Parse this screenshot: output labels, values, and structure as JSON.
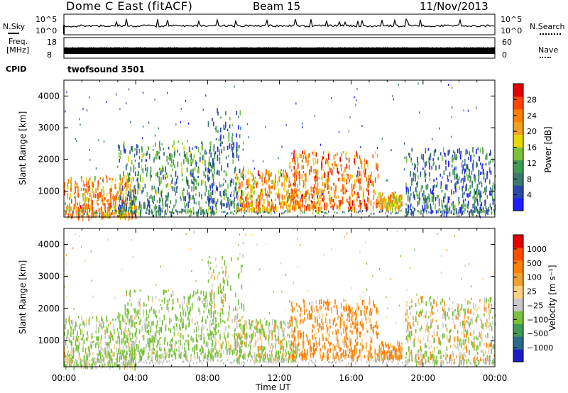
{
  "header": {
    "station": "Dome C East (fitACF)",
    "beam": "Beam 15",
    "date": "11/Nov/2013"
  },
  "top_panels": {
    "nsky_label": "N.Sky",
    "nsky_ticks": [
      "10^5",
      "10^0"
    ],
    "nsearch_label": "N.Search",
    "nsearch_ticks": [
      "10^5",
      "10^0"
    ],
    "freq_label_line1": "Freq.",
    "freq_label_line2": "[MHz]",
    "freq_ticks": [
      "18",
      "8"
    ],
    "nave_label": "Nave",
    "nave_ticks": [
      "60",
      "0"
    ],
    "cpid_label": "CPID",
    "cpid_value": "twofsound 3501"
  },
  "colors": {
    "power": [
      "#1d1dff",
      "#2a48a8",
      "#3a7a6a",
      "#3e9b55",
      "#7ac23a",
      "#e8d800",
      "#f0a020",
      "#ff7f00",
      "#ff4500",
      "#e00000"
    ],
    "velocity": [
      "#e00000",
      "#ff4a00",
      "#ff7f00",
      "#f0a030",
      "#ffd080",
      "#c8c8c8",
      "#7ac23a",
      "#3e9b55",
      "#2a6a8a",
      "#1d1dc8"
    ]
  },
  "chart_data": [
    {
      "type": "heatmap",
      "name": "Power",
      "xlabel": "",
      "ylabel": "Slant Range [km]",
      "x_ticks": [
        "00:00",
        "04:00",
        "08:00",
        "12:00",
        "16:00",
        "20:00",
        "00:00"
      ],
      "xlim_hours": [
        0,
        24
      ],
      "y_ticks": [
        1000,
        2000,
        3000,
        4000
      ],
      "ylim_km": [
        180,
        4500
      ],
      "colorbar_label": "Power [dB]",
      "colorbar_ticks": [
        4,
        8,
        12,
        16,
        20,
        24,
        28
      ],
      "colorbar_range": [
        0,
        32
      ],
      "scatter_regions": [
        {
          "t0": 0.0,
          "t1": 4.0,
          "r0": 250,
          "r1": 1500,
          "level": 22
        },
        {
          "t0": 3.0,
          "t1": 8.5,
          "r0": 350,
          "r1": 2600,
          "level": 10
        },
        {
          "t0": 8.0,
          "t1": 10.0,
          "r0": 600,
          "r1": 3700,
          "level": 8
        },
        {
          "t0": 9.5,
          "t1": 13.0,
          "r0": 450,
          "r1": 1700,
          "level": 22
        },
        {
          "t0": 12.5,
          "t1": 17.5,
          "r0": 500,
          "r1": 2300,
          "level": 24
        },
        {
          "t0": 17.5,
          "t1": 18.8,
          "r0": 500,
          "r1": 1000,
          "level": 20
        },
        {
          "t0": 19.0,
          "t1": 24.0,
          "r0": 350,
          "r1": 2400,
          "level": 8
        }
      ]
    },
    {
      "type": "heatmap",
      "name": "Velocity",
      "xlabel": "Time UT",
      "ylabel": "Slant Range [km]",
      "x_ticks": [
        "00:00",
        "04:00",
        "08:00",
        "12:00",
        "16:00",
        "20:00",
        "00:00"
      ],
      "xlim_hours": [
        0,
        24
      ],
      "y_ticks": [
        1000,
        2000,
        3000,
        4000
      ],
      "ylim_km": [
        180,
        4500
      ],
      "colorbar_label": "Velocity [m s⁻¹]",
      "colorbar_ticks": [
        "1000",
        "500",
        "100",
        "25",
        "−25",
        "−100",
        "−500",
        "−1000"
      ],
      "scatter_regions": [
        {
          "t0": 0.0,
          "t1": 4.0,
          "r0": 250,
          "r1": 1800,
          "level": -150
        },
        {
          "t0": 3.0,
          "t1": 8.5,
          "r0": 500,
          "r1": 2600,
          "level": -200
        },
        {
          "t0": 8.0,
          "t1": 10.0,
          "r0": 600,
          "r1": 3700,
          "level": -120
        },
        {
          "t0": 9.5,
          "t1": 13.0,
          "r0": 450,
          "r1": 1700,
          "level": -100
        },
        {
          "t0": 12.5,
          "t1": 17.5,
          "r0": 500,
          "r1": 2300,
          "level": 150
        },
        {
          "t0": 17.5,
          "t1": 18.8,
          "r0": 500,
          "r1": 1000,
          "level": 120
        },
        {
          "t0": 19.0,
          "t1": 24.0,
          "r0": 350,
          "r1": 2400,
          "level": -60
        }
      ]
    }
  ]
}
